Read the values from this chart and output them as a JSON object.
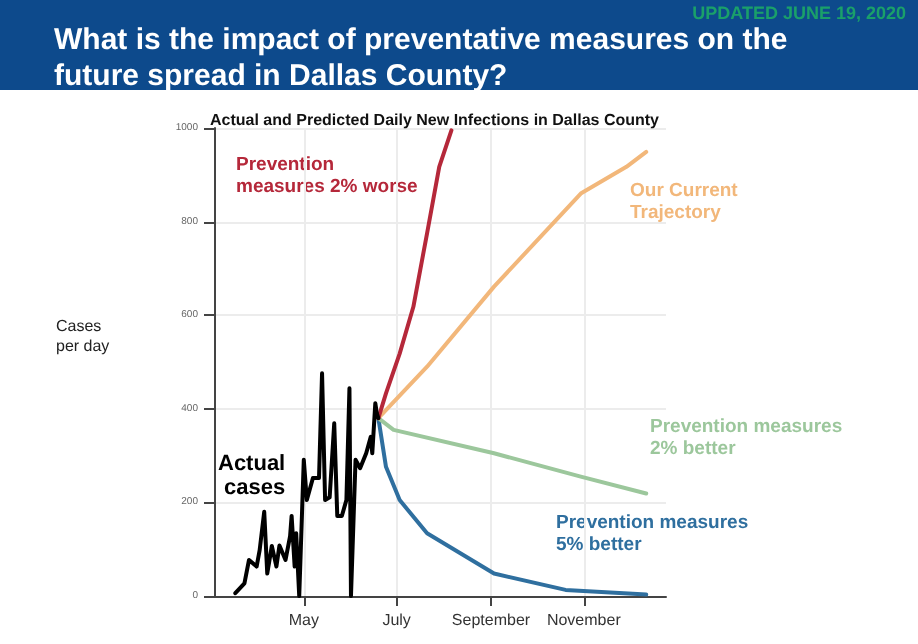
{
  "chart_data": {
    "type": "line",
    "title": "What is the impact of preventative measures on the future spread in Dallas County?",
    "subtitle": "Actual and Predicted Daily New Infections in Dallas County",
    "ylabel": "Cases per day",
    "annotations": [
      "UPDATED JUNE 19, 2020"
    ],
    "xlim": [
      "2020-03-03",
      "2020-12-25"
    ],
    "xticks": [
      {
        "value": "2020-05-01",
        "label": "May"
      },
      {
        "value": "2020-07-01",
        "label": "July"
      },
      {
        "value": "2020-09-01",
        "label": "September"
      },
      {
        "value": "2020-11-01",
        "label": "November"
      }
    ],
    "ylim": [
      0,
      1000
    ],
    "yticks": [
      0,
      200,
      400,
      600,
      800,
      1000
    ],
    "grid": true,
    "legend": false,
    "marker": "none",
    "line_style": "solid",
    "series": [
      {
        "name": "Actual cases",
        "color": "#000000",
        "x": [
          "2020-03-17",
          "2020-03-23",
          "2020-03-26",
          "2020-03-31",
          "2020-04-02",
          "2020-04-05",
          "2020-04-07",
          "2020-04-10",
          "2020-04-13",
          "2020-04-15",
          "2020-04-19",
          "2020-04-22",
          "2020-04-23",
          "2020-04-25",
          "2020-04-26",
          "2020-04-28",
          "2020-05-01",
          "2020-05-03",
          "2020-05-07",
          "2020-05-11",
          "2020-05-13",
          "2020-05-15",
          "2020-05-18",
          "2020-05-21",
          "2020-05-23",
          "2020-05-26",
          "2020-05-29",
          "2020-05-31",
          "2020-06-01",
          "2020-06-04",
          "2020-06-07",
          "2020-06-11",
          "2020-06-14",
          "2020-06-15",
          "2020-06-17",
          "2020-06-18",
          "2020-06-19"
        ],
        "values": [
          6,
          27,
          77,
          63,
          98,
          180,
          48,
          107,
          63,
          108,
          77,
          128,
          171,
          63,
          134,
          0,
          291,
          205,
          252,
          252,
          476,
          205,
          211,
          369,
          171,
          171,
          205,
          444,
          0,
          291,
          273,
          305,
          340,
          305,
          412,
          390,
          380
        ]
      },
      {
        "name": "Prevention measures 2% worse",
        "color": "#b5283a",
        "x": [
          "2020-06-19",
          "2020-06-24",
          "2020-07-03",
          "2020-07-12",
          "2020-07-21",
          "2020-07-29",
          "2020-08-06"
        ],
        "values": [
          380,
          433,
          518,
          618,
          775,
          917,
          995
        ]
      },
      {
        "name": "Our Current Trajectory",
        "color": "#f2b77a",
        "x": [
          "2020-06-19",
          "2020-07-21",
          "2020-09-03",
          "2020-10-30",
          "2020-11-29",
          "2020-12-12"
        ],
        "values": [
          380,
          490,
          661,
          860,
          917,
          949
        ]
      },
      {
        "name": "Prevention measures 2% better",
        "color": "#9cc79c",
        "x": [
          "2020-06-19",
          "2020-06-29",
          "2020-09-03",
          "2020-10-30",
          "2020-12-12"
        ],
        "values": [
          380,
          355,
          305,
          255,
          219
        ]
      },
      {
        "name": "Prevention measures 5% better",
        "color": "#2f6f9f",
        "x": [
          "2020-06-19",
          "2020-06-24",
          "2020-07-03",
          "2020-07-21",
          "2020-09-03",
          "2020-10-20",
          "2020-12-12"
        ],
        "values": [
          380,
          276,
          205,
          134,
          48,
          13,
          3
        ]
      }
    ]
  }
}
